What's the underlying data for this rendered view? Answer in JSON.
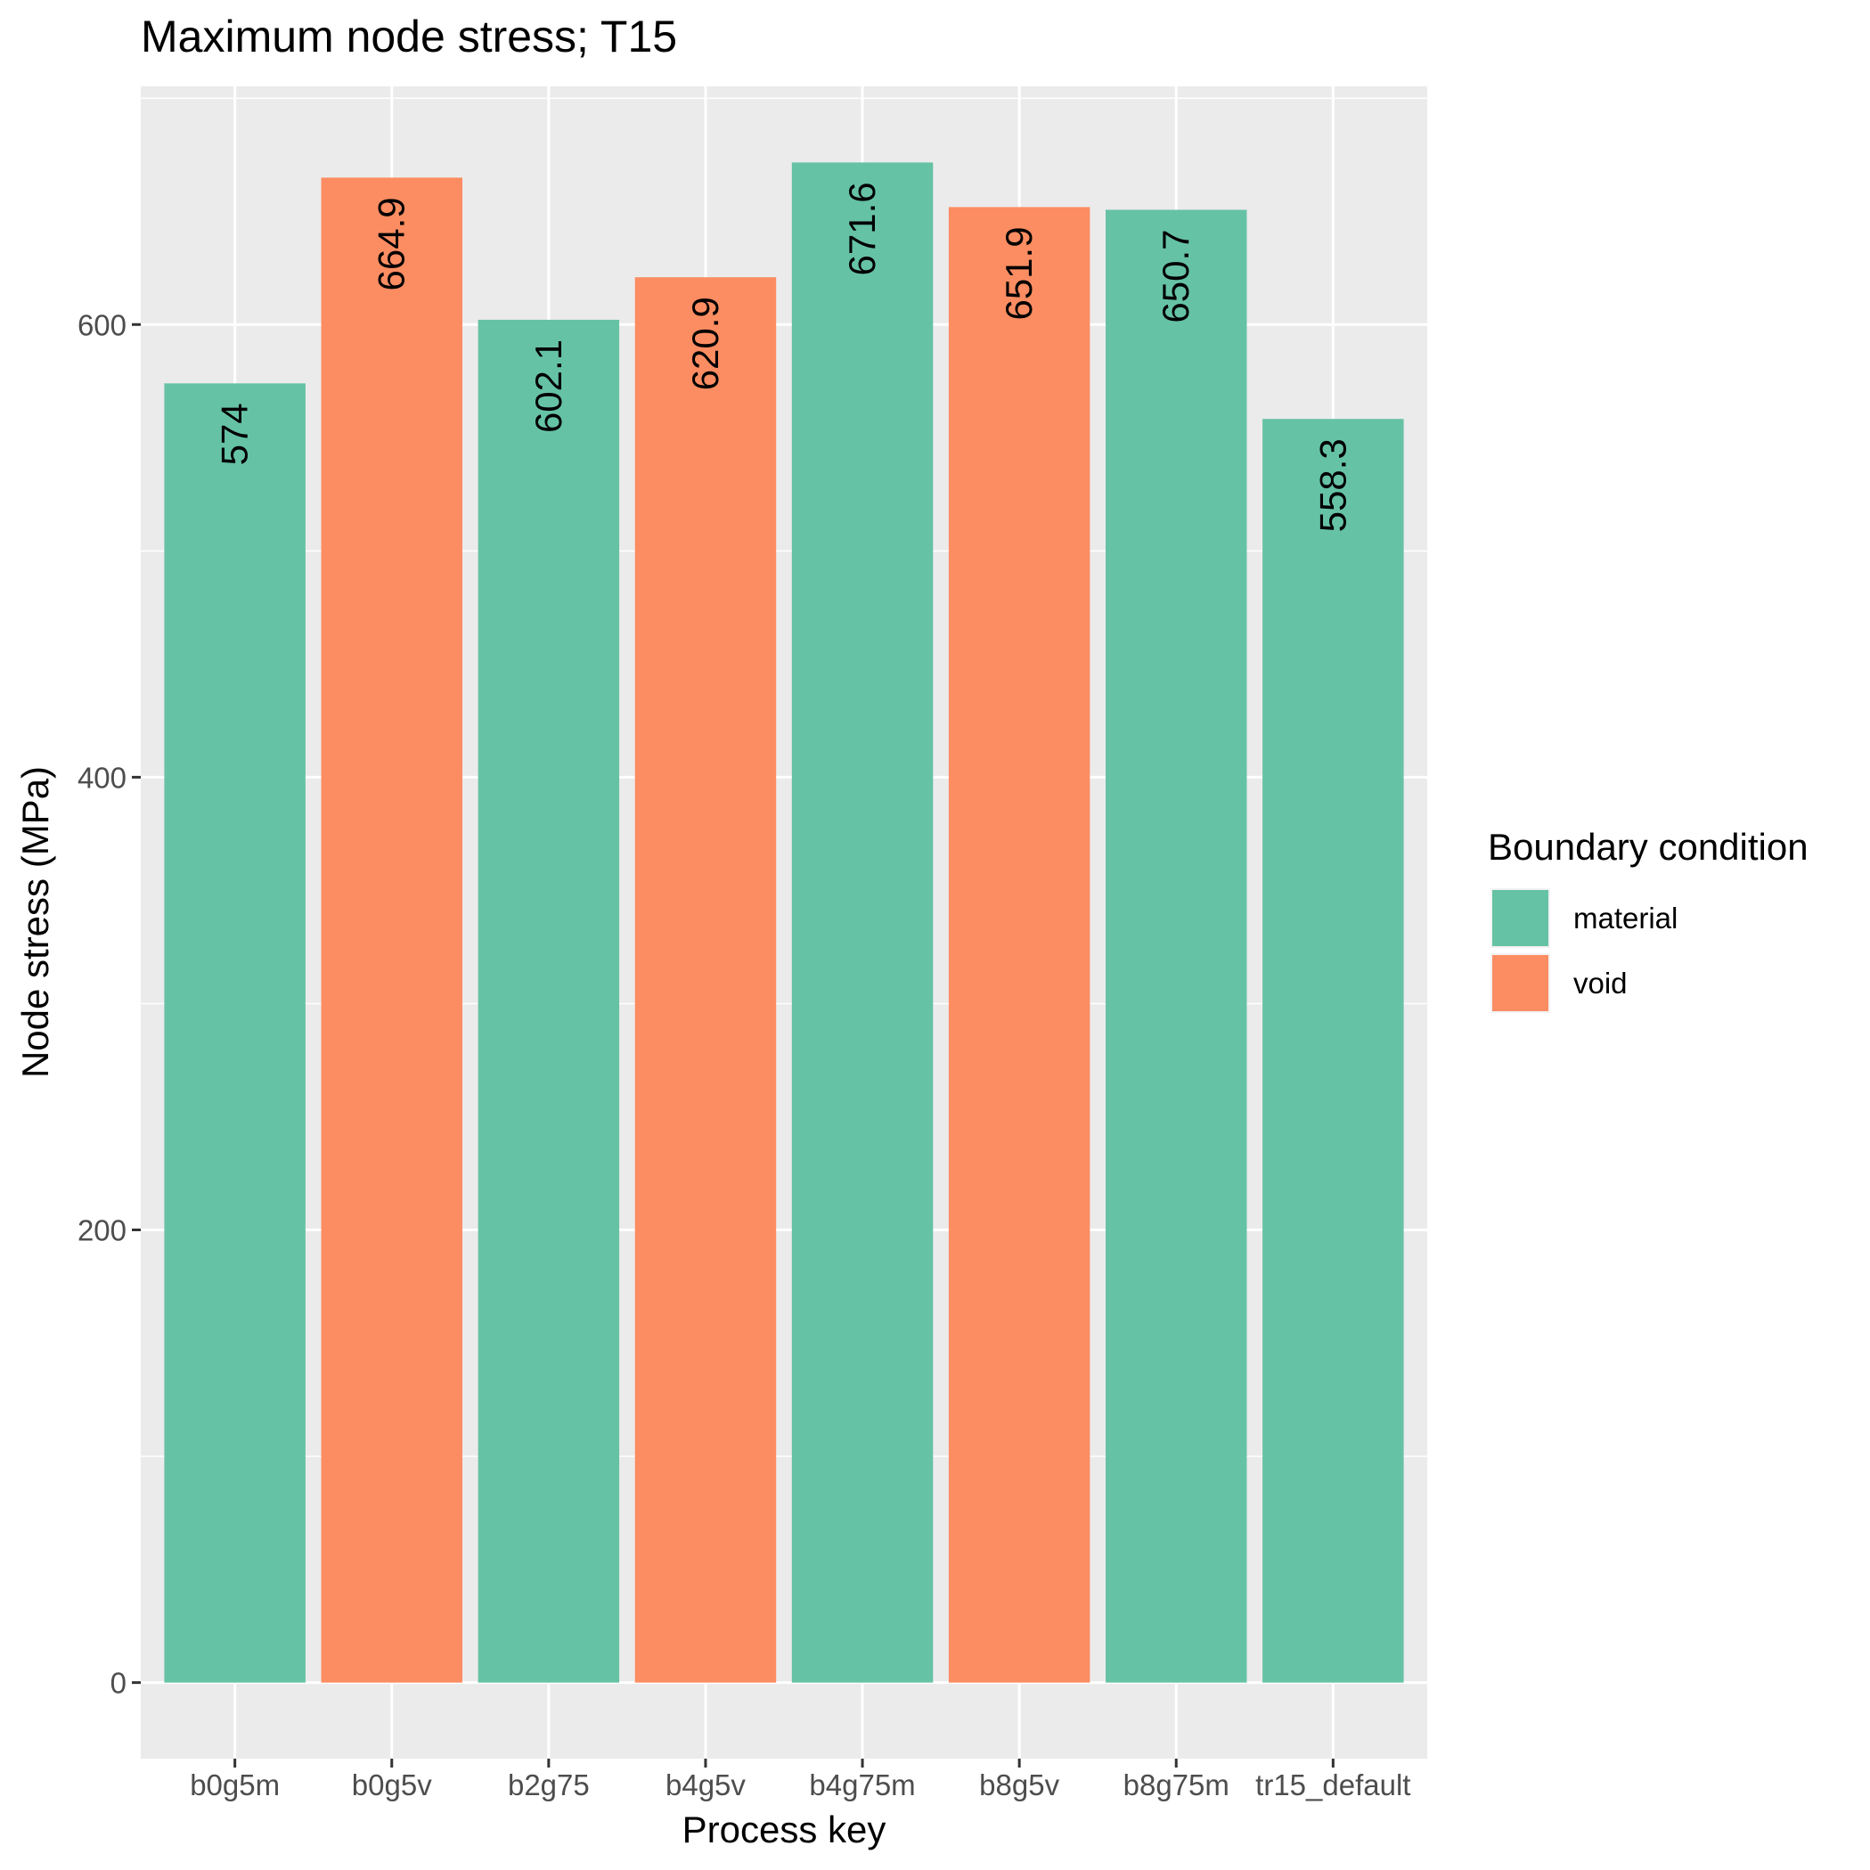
{
  "chart_data": {
    "type": "bar",
    "title": "Maximum node stress; T15",
    "xlabel": "Process key",
    "ylabel": "Node stress (MPa)",
    "categories": [
      "b0g5m",
      "b0g5v",
      "b2g75",
      "b4g5v",
      "b4g75m",
      "b8g5v",
      "b8g75m",
      "tr15_default"
    ],
    "values": [
      574,
      664.9,
      602.1,
      620.9,
      671.6,
      651.9,
      650.7,
      558.3
    ],
    "value_labels": [
      "574",
      "664.9",
      "602.1",
      "620.9",
      "671.6",
      "651.9",
      "650.7",
      "558.3"
    ],
    "groups": [
      "material",
      "void",
      "material",
      "void",
      "material",
      "void",
      "material",
      "material"
    ],
    "ylim": [
      -33.6,
      705.2
    ],
    "yticks": [
      0,
      200,
      400,
      600
    ],
    "ytick_labels": [
      "0",
      "200",
      "400",
      "600"
    ],
    "grid": true,
    "legend": {
      "title": "Boundary condition",
      "position": "right",
      "entries": [
        {
          "label": "material",
          "color": "#66c2a5"
        },
        {
          "label": "void",
          "color": "#fc8d62"
        }
      ]
    },
    "colors": {
      "material": "#66c2a5",
      "void": "#fc8d62",
      "panel_background": "#ebebeb",
      "grid": "#ffffff"
    }
  }
}
